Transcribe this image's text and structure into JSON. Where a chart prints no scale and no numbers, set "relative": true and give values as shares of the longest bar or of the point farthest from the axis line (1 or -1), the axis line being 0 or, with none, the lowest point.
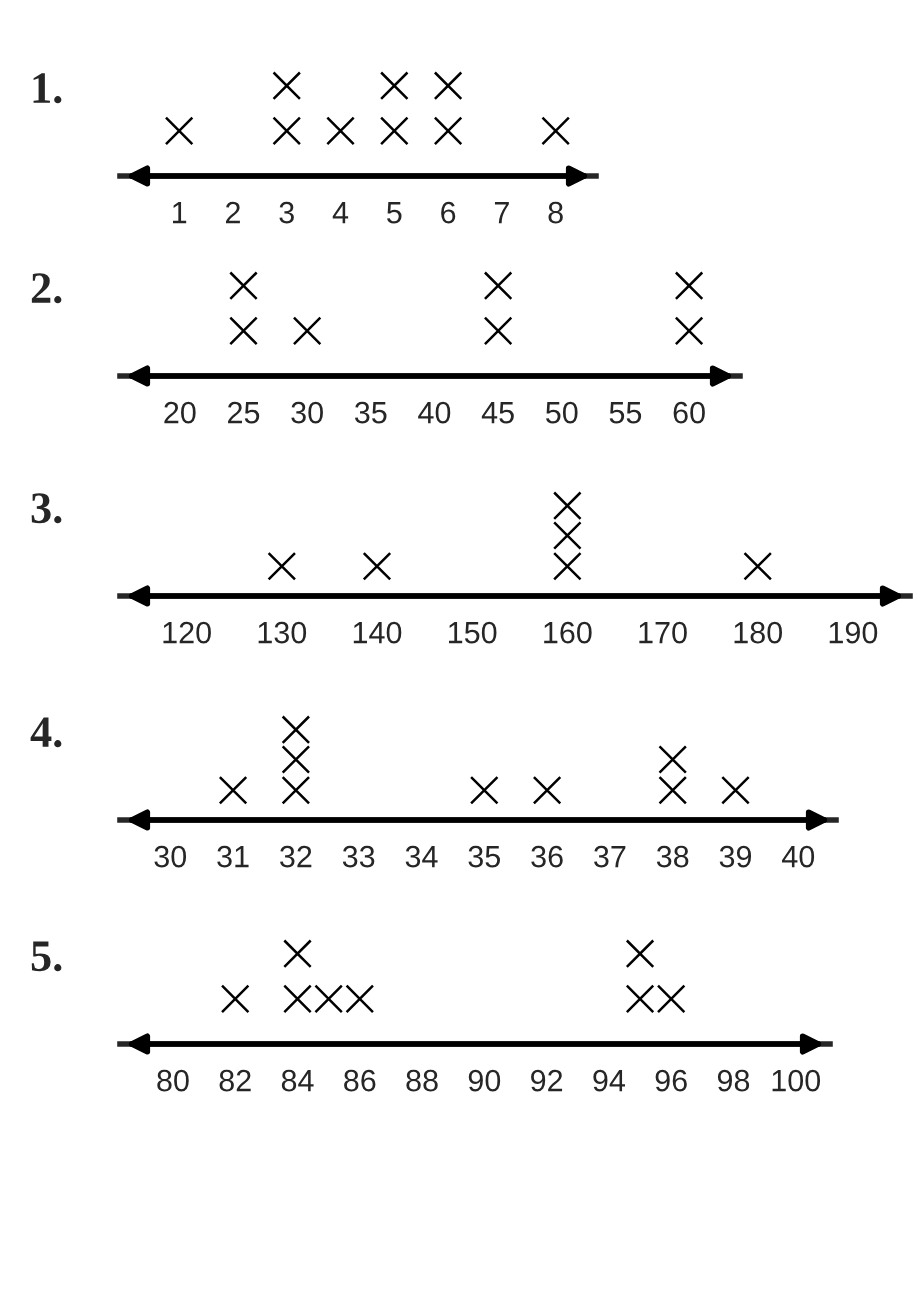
{
  "chart_data": [
    {
      "type": "scatter",
      "title": "1.",
      "relative": true,
      "marker": "cross",
      "tick_labels": "x",
      "xlim": [
        -0.1,
        8.75
      ],
      "xticks": [
        1,
        2,
        3,
        4,
        5,
        6,
        7,
        8
      ],
      "series": [
        {
          "color": "#000000",
          "x": [
            1,
            3,
            3,
            4,
            5,
            5,
            6,
            6,
            8
          ],
          "values": [
            0.5,
            0.5,
            1,
            0.5,
            0.5,
            1,
            0.5,
            1,
            0.5
          ]
        }
      ]
    },
    {
      "type": "scatter",
      "title": "2.",
      "relative": true,
      "marker": "cross",
      "tick_labels": "x",
      "xlim": [
        15.3,
        64
      ],
      "xticks": [
        20,
        25,
        30,
        35,
        40,
        45,
        50,
        55,
        60
      ],
      "series": [
        {
          "color": "#000000",
          "x": [
            25,
            25,
            30,
            45,
            45,
            60,
            60
          ],
          "values": [
            0.5,
            1,
            0.5,
            0.5,
            1,
            0.5,
            1
          ]
        }
      ]
    },
    {
      "type": "scatter",
      "title": "3.",
      "relative": true,
      "marker": "cross",
      "tick_labels": "x",
      "xlim": [
        113,
        196
      ],
      "xticks": [
        120,
        130,
        140,
        150,
        160,
        170,
        180,
        190
      ],
      "series": [
        {
          "color": "#000000",
          "x": [
            130,
            140,
            160,
            160,
            160,
            180
          ],
          "values": [
            0.33,
            0.33,
            0.33,
            0.67,
            1,
            0.33
          ]
        }
      ]
    },
    {
      "type": "scatter",
      "title": "4.",
      "relative": true,
      "marker": "cross",
      "tick_labels": "x",
      "xlim": [
        29.2,
        40.6
      ],
      "xticks": [
        30,
        31,
        32,
        33,
        34,
        35,
        36,
        37,
        38,
        39,
        40
      ],
      "series": [
        {
          "color": "#000000",
          "x": [
            31,
            32,
            32,
            32,
            35,
            36,
            38,
            38,
            39
          ],
          "values": [
            0.33,
            0.33,
            0.67,
            1,
            0.33,
            0.33,
            0.33,
            0.67,
            0.33
          ]
        }
      ]
    },
    {
      "type": "scatter",
      "title": "5.",
      "relative": true,
      "marker": "cross",
      "tick_labels": "x",
      "xlim": [
        78.3,
        101.1
      ],
      "xticks": [
        80,
        82,
        84,
        86,
        88,
        90,
        92,
        94,
        96,
        98,
        100
      ],
      "series": [
        {
          "color": "#000000",
          "x": [
            82,
            84,
            84,
            85,
            86,
            95,
            95,
            96
          ],
          "values": [
            0.5,
            0.5,
            1,
            0.5,
            0.5,
            0.5,
            1,
            0.5
          ]
        }
      ]
    }
  ]
}
